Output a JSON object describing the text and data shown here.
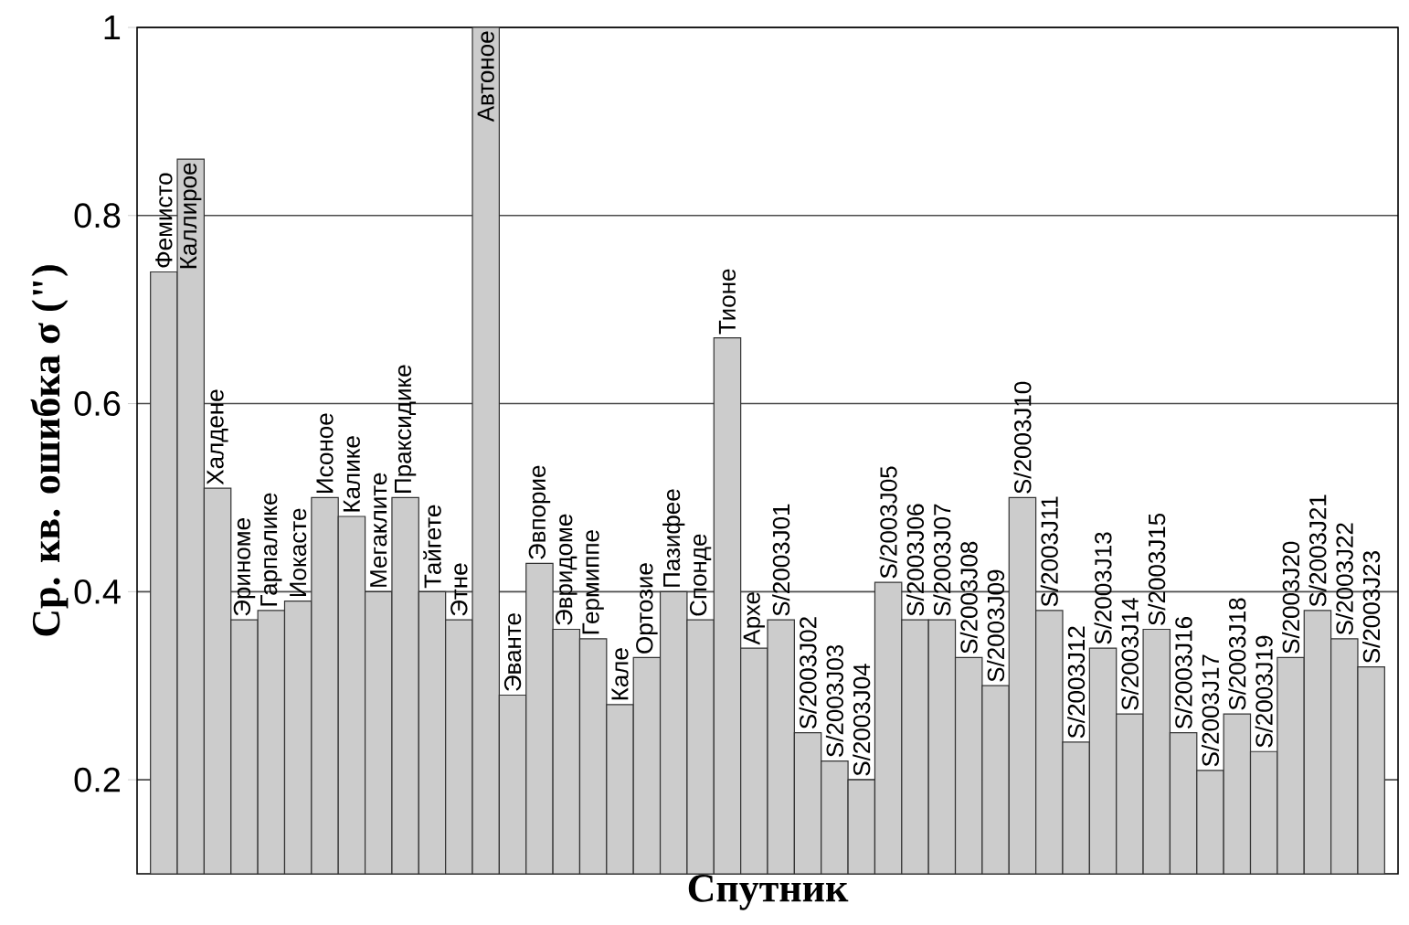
{
  "chart_data": {
    "type": "bar",
    "xlabel": "Спутник",
    "ylabel": "Ср. кв. ошибка σ (\")",
    "color": "#cccccc",
    "categories": [
      "Фемисто",
      "Каллирое",
      "Халдене",
      "Эриноме",
      "Гарпалике",
      "Иокасте",
      "Исоное",
      "Калике",
      "Мегаклите",
      "Праксидике",
      "Тайгете",
      "Этне",
      "Автоное",
      "Эванте",
      "Эвпорие",
      "Эвридоме",
      "Гермиппе",
      "Кале",
      "Ортозие",
      "Пазифее",
      "Спонде",
      "Тионе",
      "Архе",
      "S/2003J01",
      "S/2003J02",
      "S/2003J03",
      "S/2003J04",
      "S/2003J05",
      "S/2003J06",
      "S/2003J07",
      "S/2003J08",
      "S/2003J09",
      "S/2003J10",
      "S/2003J11",
      "S/2003J12",
      "S/2003J13",
      "S/2003J14",
      "S/2003J15",
      "S/2003J16",
      "S/2003J17",
      "S/2003J18",
      "S/2003J19",
      "S/2003J20",
      "S/2003J21",
      "S/2003J22",
      "S/2003J23"
    ],
    "values": [
      0.74,
      0.86,
      0.51,
      0.37,
      0.38,
      0.39,
      0.5,
      0.48,
      0.4,
      0.5,
      0.4,
      0.37,
      1.0,
      0.29,
      0.43,
      0.36,
      0.35,
      0.28,
      0.33,
      0.4,
      0.37,
      0.67,
      0.34,
      0.37,
      0.25,
      0.22,
      0.2,
      0.41,
      0.37,
      0.37,
      0.33,
      0.3,
      0.5,
      0.38,
      0.24,
      0.34,
      0.27,
      0.36,
      0.25,
      0.21,
      0.27,
      0.23,
      0.33,
      0.38,
      0.35,
      0.32
    ],
    "ylim": [
      0.1,
      1
    ],
    "yticks": [
      0.2,
      0.4,
      0.6,
      0.8,
      1
    ],
    "grid": "y"
  }
}
